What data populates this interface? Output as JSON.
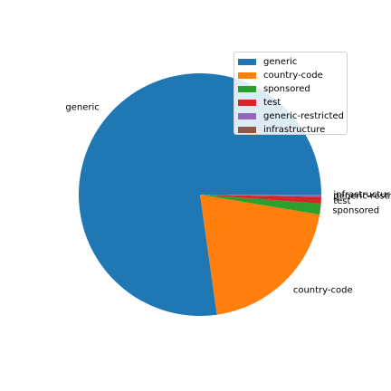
{
  "chart_data": {
    "type": "pie",
    "title": "",
    "slices": [
      {
        "label": "generic",
        "value": 0.7722,
        "color": "#1f77b4"
      },
      {
        "label": "country-code",
        "value": 0.2014,
        "color": "#ff7f0e"
      },
      {
        "label": "sponsored",
        "value": 0.0145,
        "color": "#2ca02c"
      },
      {
        "label": "test",
        "value": 0.009,
        "color": "#d62728"
      },
      {
        "label": "generic-restricted",
        "value": 0.0025,
        "color": "#9467bd"
      },
      {
        "label": "infrastructure",
        "value": 0.0004,
        "color": "#8c564b"
      }
    ],
    "start_angle_deg": 0,
    "direction": "counterclockwise",
    "legend": {
      "placement": "top-right"
    },
    "slice_label_display": [
      "generic",
      "country-code",
      "sponsored",
      "test",
      "generic-restr",
      "infrastructur"
    ]
  }
}
